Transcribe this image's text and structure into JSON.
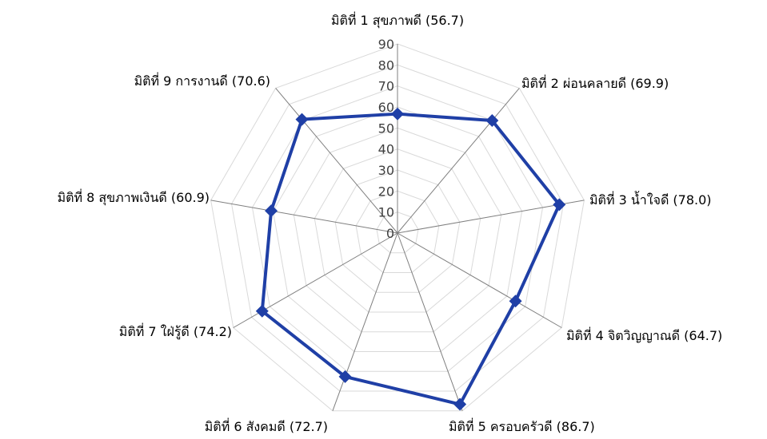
{
  "chart_data": {
    "type": "radar",
    "title": "",
    "rlim": [
      0,
      90
    ],
    "ticks": [
      0,
      10,
      20,
      30,
      40,
      50,
      60,
      70,
      80,
      90
    ],
    "tick_labels": [
      "0",
      "10",
      "20",
      "30",
      "40",
      "50",
      "60",
      "70",
      "80",
      "90"
    ],
    "grid": true,
    "legend": "none",
    "categories": [
      "มิติที่ 1 สุขภาพดี (56.7)",
      "มิติที่ 2 ผ่อนคลายดี (69.9)",
      "มิติที่ 3 น้ำใจดี (78.0)",
      "มิติที่ 4 จิตวิญญาณดี (64.7)",
      "มิติที่ 5 ครอบครัวดี (86.7)",
      "มิติที่ 6 สังคมดี (72.7)",
      "มิติที่ 7 ใฝ่รู้ดี (74.2)",
      "มิติที่ 8 สุขภาพเงินดี (60.9)",
      "มิติที่ 9 การงานดี (70.6)"
    ],
    "series": [
      {
        "values": [
          56.7,
          69.9,
          78.0,
          64.7,
          86.7,
          72.7,
          74.2,
          60.9,
          70.6
        ],
        "color": "#1f3fa6"
      }
    ]
  }
}
